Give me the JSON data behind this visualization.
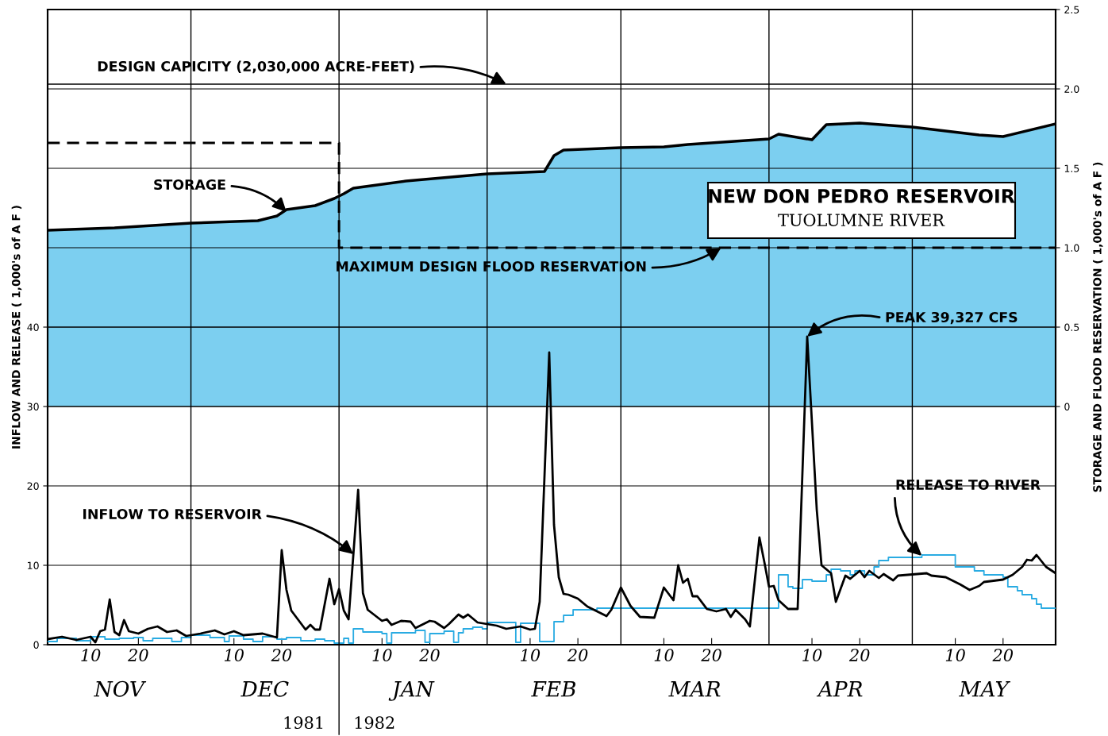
{
  "chart_data": {
    "type": "line",
    "title": "NEW DON PEDRO RESERVOIR",
    "subtitle": "TUOLUMNE RIVER",
    "ylabel": "INFLOW AND RELEASE ( 1,000's of A F )",
    "y2label": "STORAGE AND FLOOD RESERVATION ( 1,000's of A F )",
    "xlim": [
      "1981-11-01",
      "1982-05-31"
    ],
    "xticks": [
      {
        "value": "1981-11-10",
        "label": "10"
      },
      {
        "value": "1981-11-20",
        "label": "20"
      },
      {
        "value": "1981-12-10",
        "label": "10"
      },
      {
        "value": "1981-12-20",
        "label": "20"
      },
      {
        "value": "1982-01-10",
        "label": "10"
      },
      {
        "value": "1982-01-20",
        "label": "20"
      },
      {
        "value": "1982-02-10",
        "label": "10"
      },
      {
        "value": "1982-02-20",
        "label": "20"
      },
      {
        "value": "1982-03-10",
        "label": "10"
      },
      {
        "value": "1982-03-20",
        "label": "20"
      },
      {
        "value": "1982-04-10",
        "label": "10"
      },
      {
        "value": "1982-04-20",
        "label": "20"
      },
      {
        "value": "1982-05-10",
        "label": "10"
      },
      {
        "value": "1982-05-20",
        "label": "20"
      }
    ],
    "ylim": [
      0,
      80
    ],
    "yticks": [
      0,
      10,
      20,
      30,
      40
    ],
    "y2lim": [
      -1.5,
      2.5
    ],
    "y2ticks": [
      0,
      0.5,
      {
        "value": 1,
        "label": "1.0"
      },
      1.5,
      {
        "value": 2,
        "label": "2.0"
      },
      2.5
    ],
    "grid": "y",
    "legend": false,
    "ref_lines": [
      {
        "axis": "x",
        "value": "1981-12-01"
      },
      {
        "axis": "x",
        "value": "1982-01-01"
      },
      {
        "axis": "x",
        "value": "1982-02-01"
      },
      {
        "axis": "x",
        "value": "1982-03-01"
      },
      {
        "axis": "x",
        "value": "1982-04-01"
      },
      {
        "axis": "x",
        "value": "1982-05-01"
      },
      {
        "axis": "y2",
        "value": 2.03
      }
    ],
    "series": [
      {
        "type": "area",
        "axis": "y2",
        "color": "#7ccff0",
        "x": [
          "1981-11-01",
          "1981-11-15",
          "1981-12-01",
          "1981-12-15",
          "1981-12-19",
          "1981-12-21",
          "1981-12-27",
          "1981-12-31",
          "1982-01-02",
          "1982-01-04",
          "1982-01-15",
          "1982-02-01",
          "1982-02-13",
          "1982-02-15",
          "1982-02-17",
          "1982-03-01",
          "1982-03-10",
          "1982-03-15",
          "1982-04-01",
          "1982-04-03",
          "1982-04-10",
          "1982-04-13",
          "1982-04-20",
          "1982-05-01",
          "1982-05-15",
          "1982-05-20",
          "1982-05-31"
        ],
        "values": [
          1.11,
          1.125,
          1.155,
          1.17,
          1.2,
          1.24,
          1.265,
          1.31,
          1.34,
          1.375,
          1.42,
          1.465,
          1.48,
          1.58,
          1.615,
          1.63,
          1.635,
          1.65,
          1.685,
          1.715,
          1.68,
          1.775,
          1.785,
          1.76,
          1.71,
          1.7,
          1.78
        ]
      },
      {
        "type": "line",
        "axis": "y2",
        "color": "#000000",
        "line_style": "dashed",
        "x": [
          "1981-11-01",
          "1982-01-01",
          "1982-01-01",
          "1982-05-31"
        ],
        "values": [
          1.66,
          1.66,
          1.0,
          1.0
        ]
      },
      {
        "type": "step",
        "color": "#29abe2",
        "x": [
          "1981-11-01",
          "1981-11-03",
          "1981-11-07",
          "1981-11-10",
          "1981-11-13",
          "1981-11-16",
          "1981-11-19",
          "1981-11-21",
          "1981-11-23",
          "1981-11-27",
          "1981-11-29",
          "1981-12-01",
          "1981-12-05",
          "1981-12-08",
          "1981-12-09",
          "1981-12-12",
          "1981-12-14",
          "1981-12-16",
          "1981-12-19",
          "1981-12-21",
          "1981-12-24",
          "1981-12-27",
          "1981-12-29",
          "1981-12-31",
          "1982-01-02",
          "1982-01-03",
          "1982-01-04",
          "1982-01-06",
          "1982-01-10",
          "1982-01-11",
          "1982-01-12",
          "1982-01-17",
          "1982-01-19",
          "1982-01-20",
          "1982-01-23",
          "1982-01-25",
          "1982-01-26",
          "1982-01-27",
          "1982-01-29",
          "1982-01-31",
          "1982-02-01",
          "1982-02-07",
          "1982-02-08",
          "1982-02-12",
          "1982-02-15",
          "1982-02-17",
          "1982-02-19",
          "1982-02-24",
          "1982-04-03",
          "1982-04-05",
          "1982-04-06",
          "1982-04-08",
          "1982-04-10",
          "1982-04-13",
          "1982-04-14",
          "1982-04-16",
          "1982-04-18",
          "1982-04-19",
          "1982-04-21",
          "1982-04-23",
          "1982-04-24",
          "1982-04-26",
          "1982-05-03",
          "1982-05-10",
          "1982-05-14",
          "1982-05-16",
          "1982-05-20",
          "1982-05-21",
          "1982-05-23",
          "1982-05-24",
          "1982-05-26",
          "1982-05-27",
          "1982-05-28",
          "1982-05-31"
        ],
        "values": [
          0.4,
          0.8,
          0.5,
          1.0,
          0.7,
          0.8,
          0.9,
          0.5,
          0.8,
          0.4,
          0.9,
          1.2,
          0.9,
          0.4,
          1.1,
          0.7,
          0.4,
          1.0,
          0.7,
          0.9,
          0.5,
          0.7,
          0.5,
          0.2,
          0.8,
          0.2,
          2.0,
          1.6,
          1.4,
          0.2,
          1.5,
          1.8,
          0.3,
          1.4,
          1.7,
          0.3,
          1.5,
          2.0,
          2.2,
          2.0,
          2.8,
          0.3,
          2.7,
          0.4,
          2.9,
          3.7,
          4.4,
          4.6,
          8.8,
          7.3,
          7.1,
          8.2,
          8.0,
          8.8,
          9.5,
          9.3,
          8.8,
          9.3,
          8.8,
          9.8,
          10.6,
          11.0,
          11.3,
          9.8,
          9.3,
          8.8,
          8.5,
          7.3,
          6.8,
          6.3,
          5.8,
          5.1,
          4.6,
          4.6
        ]
      },
      {
        "color": "#000000",
        "x": [
          "1981-11-01",
          "1981-11-04",
          "1981-11-07",
          "1981-11-10",
          "1981-11-11",
          "1981-11-12",
          "1981-11-13",
          "1981-11-14",
          "1981-11-15",
          "1981-11-16",
          "1981-11-17",
          "1981-11-18",
          "1981-11-20",
          "1981-11-22",
          "1981-11-24",
          "1981-11-26",
          "1981-11-28",
          "1981-11-30",
          "1981-12-03",
          "1981-12-06",
          "1981-12-08",
          "1981-12-10",
          "1981-12-12",
          "1981-12-16",
          "1981-12-19",
          "1981-12-20",
          "1981-12-21",
          "1981-12-22",
          "1981-12-25",
          "1981-12-26",
          "1981-12-27",
          "1981-12-28",
          "1981-12-30",
          "1981-12-31",
          "1982-01-01",
          "1982-01-02",
          "1982-01-03",
          "1982-01-05",
          "1982-01-06",
          "1982-01-07",
          "1982-01-10",
          "1982-01-11",
          "1982-01-12",
          "1982-01-14",
          "1982-01-16",
          "1982-01-17",
          "1982-01-20",
          "1982-01-21",
          "1982-01-23",
          "1982-01-24",
          "1982-01-26",
          "1982-01-27",
          "1982-01-28",
          "1982-01-30",
          "1982-02-01",
          "1982-02-03",
          "1982-02-05",
          "1982-02-08",
          "1982-02-10",
          "1982-02-11",
          "1982-02-12",
          "1982-02-14",
          "1982-02-15",
          "1982-02-16",
          "1982-02-17",
          "1982-02-18",
          "1982-02-20",
          "1982-02-22",
          "1982-02-24",
          "1982-02-26",
          "1982-02-27",
          "1982-03-01",
          "1982-03-03",
          "1982-03-05",
          "1982-03-08",
          "1982-03-10",
          "1982-03-12",
          "1982-03-13",
          "1982-03-14",
          "1982-03-15",
          "1982-03-16",
          "1982-03-17",
          "1982-03-19",
          "1982-03-21",
          "1982-03-23",
          "1982-03-24",
          "1982-03-25",
          "1982-03-27",
          "1982-03-28",
          "1982-03-30",
          "1982-03-31",
          "1982-04-01",
          "1982-04-02",
          "1982-04-03",
          "1982-04-05",
          "1982-04-07",
          "1982-04-09",
          "1982-04-11",
          "1982-04-12",
          "1982-04-14",
          "1982-04-15",
          "1982-04-17",
          "1982-04-18",
          "1982-04-20",
          "1982-04-21",
          "1982-04-22",
          "1982-04-24",
          "1982-04-25",
          "1982-04-27",
          "1982-04-28",
          "1982-05-04",
          "1982-05-05",
          "1982-05-08",
          "1982-05-11",
          "1982-05-13",
          "1982-05-15",
          "1982-05-16",
          "1982-05-20",
          "1982-05-22",
          "1982-05-24",
          "1982-05-25",
          "1982-05-26",
          "1982-05-27",
          "1982-05-29",
          "1982-05-31"
        ],
        "values": [
          0.7,
          1.0,
          0.6,
          1.0,
          0.3,
          1.7,
          1.9,
          5.7,
          1.6,
          1.2,
          3.1,
          1.7,
          1.4,
          2.0,
          2.3,
          1.6,
          1.8,
          1.1,
          1.4,
          1.8,
          1.3,
          1.7,
          1.2,
          1.4,
          0.9,
          11.9,
          6.9,
          4.3,
          1.9,
          2.5,
          1.9,
          1.9,
          8.3,
          5.1,
          7.0,
          4.3,
          3.2,
          19.5,
          6.5,
          4.4,
          3.0,
          3.2,
          2.5,
          3.0,
          2.9,
          2.1,
          3.0,
          2.9,
          2.1,
          2.6,
          3.8,
          3.4,
          3.8,
          2.8,
          2.6,
          2.4,
          2.0,
          2.3,
          1.9,
          2.0,
          5.4,
          36.8,
          15.1,
          8.5,
          6.4,
          6.3,
          5.8,
          4.8,
          4.2,
          3.6,
          4.4,
          7.2,
          4.9,
          3.5,
          3.4,
          7.2,
          5.6,
          10.0,
          7.8,
          8.3,
          6.1,
          6.1,
          4.5,
          4.2,
          4.5,
          3.5,
          4.4,
          3.2,
          2.3,
          13.5,
          10.5,
          7.3,
          7.4,
          5.6,
          4.5,
          4.5,
          38.8,
          17.0,
          10.0,
          9.0,
          5.4,
          8.7,
          8.3,
          9.3,
          8.5,
          9.3,
          8.4,
          8.9,
          8.1,
          8.7,
          9.0,
          8.7,
          8.5,
          7.6,
          6.9,
          7.4,
          7.9,
          8.2,
          8.8,
          9.8,
          10.7,
          10.6,
          11.3,
          9.8,
          9.0
        ]
      }
    ],
    "annotations": [
      {
        "text": "DESIGN CAPICITY (2,030,000 ACRE-FEET)",
        "x": "1982-02-05",
        "y": 70.6
      },
      {
        "text": "STORAGE",
        "x": "1981-12-21",
        "y": 54.5
      },
      {
        "text": "MAXIMUM DESIGN FLOOD RESERVATION",
        "x": "1982-03-22",
        "y": 50
      },
      {
        "text": "PEAK 39,327 CFS",
        "x": "1982-04-09",
        "y": 38.8
      },
      {
        "text": "RELEASE TO RIVER",
        "x": "1982-05-03",
        "y": 11.2
      },
      {
        "text": "INFLOW TO RESERVOIR",
        "x": "1982-01-04",
        "y": 11.4
      },
      "NOV",
      "DEC",
      "JAN",
      "FEB",
      "MAR",
      "APR",
      "MAY",
      "1981",
      "1982"
    ]
  }
}
